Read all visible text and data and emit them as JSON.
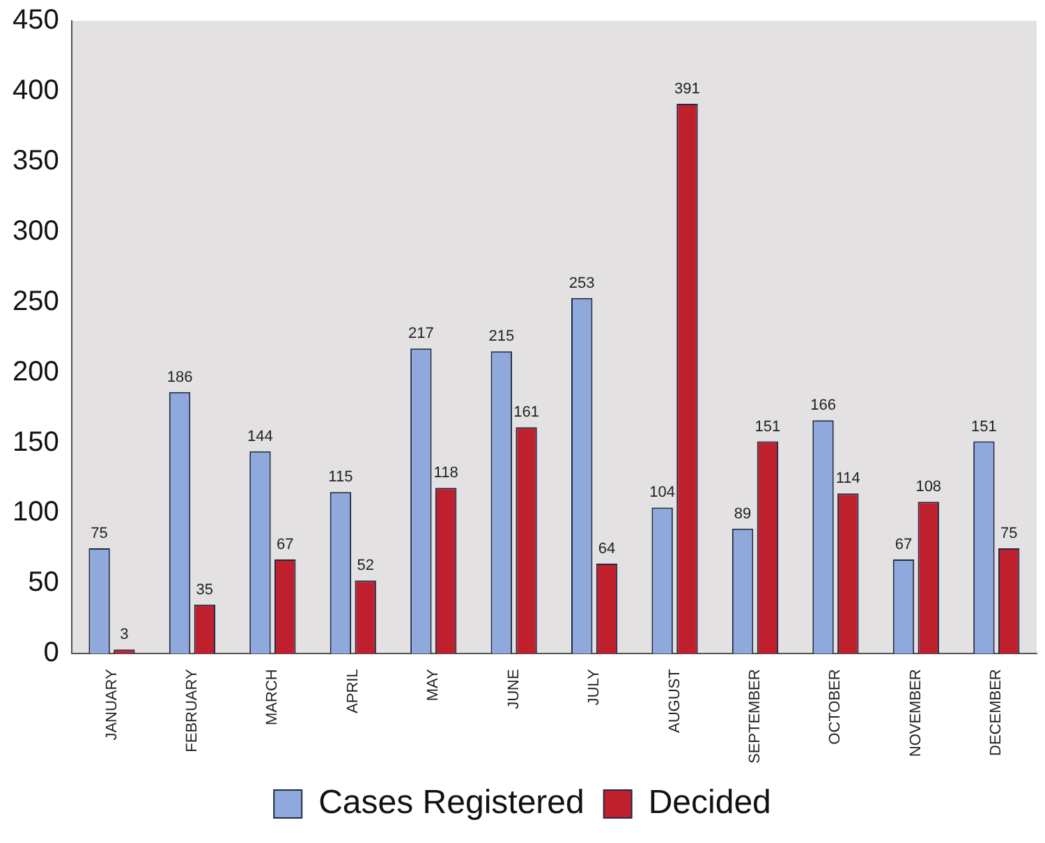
{
  "chart_data": {
    "type": "bar",
    "categories": [
      "JANUARY",
      "FEBRUARY",
      "MARCH",
      "APRIL",
      "MAY",
      "JUNE",
      "JULY",
      "AUGUST",
      "SEPTEMBER",
      "OCTOBER",
      "NOVEMBER",
      "DECEMBER"
    ],
    "series": [
      {
        "name": "Cases Registered",
        "color": "#8fa9dc",
        "values": [
          75,
          186,
          144,
          115,
          217,
          215,
          253,
          104,
          89,
          166,
          67,
          151
        ]
      },
      {
        "name": "Decided",
        "color": "#c0202e",
        "values": [
          3,
          35,
          67,
          52,
          118,
          161,
          64,
          391,
          151,
          114,
          108,
          75
        ]
      }
    ],
    "ylim": [
      0,
      450
    ],
    "yticks": [
      0,
      50,
      100,
      150,
      200,
      250,
      300,
      350,
      400,
      450
    ],
    "grid": false,
    "legend": "bottom",
    "data_labels": true
  }
}
